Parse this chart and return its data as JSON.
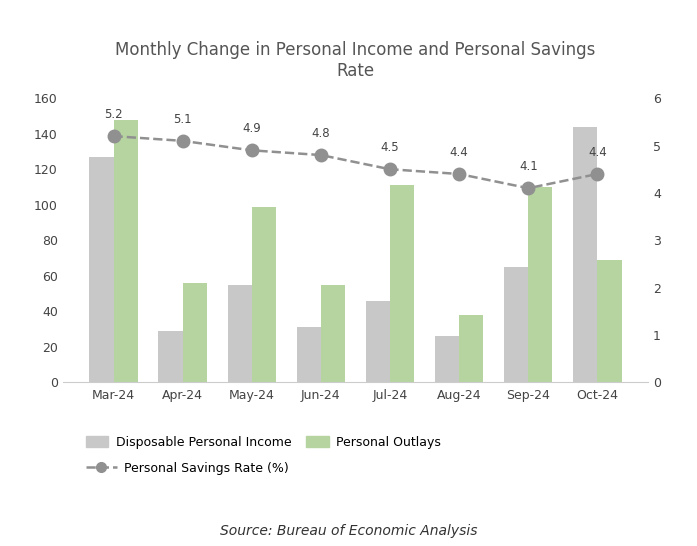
{
  "title": "Monthly Change in Personal Income and Personal Savings\nRate",
  "categories": [
    "Mar-24",
    "Apr-24",
    "May-24",
    "Jun-24",
    "Jul-24",
    "Aug-24",
    "Sep-24",
    "Oct-24"
  ],
  "disposable_income": [
    127,
    29,
    55,
    31,
    46,
    26,
    65,
    144
  ],
  "personal_outlays": [
    148,
    56,
    99,
    55,
    111,
    38,
    110,
    69
  ],
  "savings_rate": [
    5.2,
    5.1,
    4.9,
    4.8,
    4.5,
    4.4,
    4.1,
    4.4
  ],
  "bar_color_income": "#c8c8c8",
  "bar_color_outlays": "#b5d4a0",
  "line_color": "#909090",
  "marker_color": "#909090",
  "ylim_left": [
    0,
    160
  ],
  "ylim_right": [
    0,
    6
  ],
  "yticks_left": [
    0,
    20,
    40,
    60,
    80,
    100,
    120,
    140,
    160
  ],
  "yticks_right": [
    0,
    1,
    2,
    3,
    4,
    5,
    6
  ],
  "source_text": "Source: Bureau of Economic Analysis",
  "legend_income": "Disposable Personal Income",
  "legend_outlays": "Personal Outlays",
  "legend_savings": "Personal Savings Rate (%)",
  "bar_width": 0.35,
  "title_fontsize": 12,
  "tick_fontsize": 9,
  "legend_fontsize": 9,
  "source_fontsize": 10,
  "annotation_fontsize": 8.5,
  "background_color": "#ffffff"
}
